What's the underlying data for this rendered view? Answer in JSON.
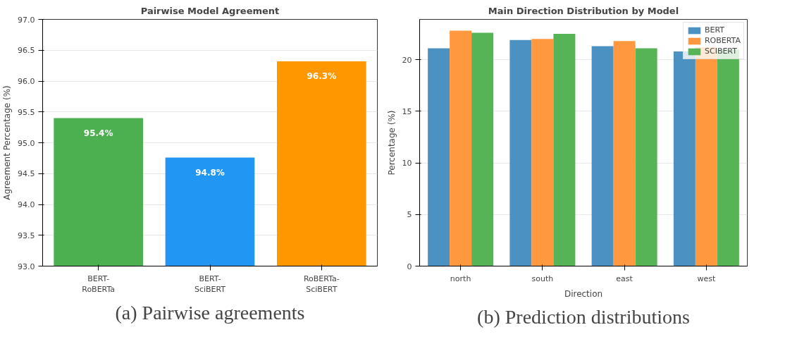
{
  "chart_data": [
    {
      "type": "bar",
      "title": "Pairwise Model Agreement",
      "ylabel": "Agreement Percentage (%)",
      "categories": [
        "BERT-\nRoBERTa",
        "BERT-\nSciBERT",
        "RoBERTa-\nSciBERT"
      ],
      "values": [
        95.4,
        94.76,
        96.32
      ],
      "colors": [
        "#4caf50",
        "#2196f3",
        "#ff9800"
      ],
      "value_labels": [
        "95.4%",
        "94.8%",
        "96.3%"
      ],
      "ylim": [
        93.0,
        97.0
      ],
      "yticks": [
        {
          "value": 93.0,
          "label": "93.0"
        },
        {
          "value": 93.5,
          "label": "93.5"
        },
        {
          "value": 94.0,
          "label": "94.0"
        },
        {
          "value": 94.5,
          "label": "94.5"
        },
        {
          "value": 95.0,
          "label": "95.0"
        },
        {
          "value": 95.5,
          "label": "95.5"
        },
        {
          "value": 96.0,
          "label": "96.0"
        },
        {
          "value": 96.5,
          "label": "96.5"
        },
        {
          "value": 97.0,
          "label": "97.0"
        }
      ],
      "grid": "y",
      "annotations": [
        "(a) Pairwise agreements"
      ]
    },
    {
      "type": "bar",
      "title": "Main Direction Distribution by Model",
      "xlabel": "Direction",
      "ylabel": "Percentage (%)",
      "categories": [
        "north",
        "south",
        "east",
        "west"
      ],
      "series": [
        {
          "name": "BERT",
          "color": "#4b92c3",
          "values": [
            21.1,
            21.9,
            21.3,
            20.8
          ]
        },
        {
          "name": "ROBERTA",
          "color": "#ff983e",
          "values": [
            22.8,
            22.0,
            21.8,
            21.2
          ]
        },
        {
          "name": "SCIBERT",
          "color": "#56b356",
          "values": [
            22.6,
            22.5,
            21.1,
            21.0
          ]
        }
      ],
      "ylim": [
        0,
        23.9
      ],
      "yticks": [
        0,
        5,
        10,
        15,
        20
      ],
      "grid": "y",
      "legend": "top right",
      "annotations": [
        "(b) Prediction distributions"
      ]
    }
  ]
}
